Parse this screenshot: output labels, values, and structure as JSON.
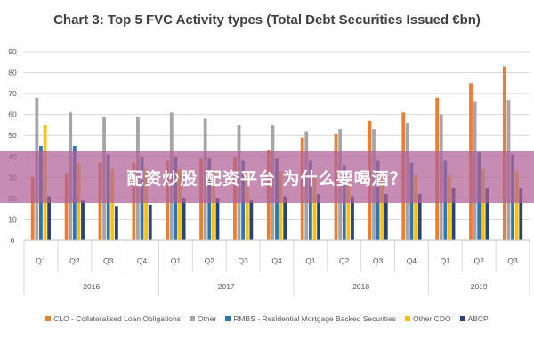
{
  "overlay": {
    "text": "配资炒股 配资平台 为什么要喝酒？"
  },
  "chart_data": {
    "type": "bar",
    "title": "Chart 3: Top 5 FVC Activity types (Total Debt Securities Issued €bn)",
    "xlabel": "",
    "ylabel": "",
    "ylim": [
      0,
      90
    ],
    "yticks": [
      0,
      10,
      20,
      30,
      40,
      50,
      60,
      70,
      80,
      90
    ],
    "grid": true,
    "legend_position": "bottom",
    "categories": [
      "Q1",
      "Q2",
      "Q3",
      "Q4",
      "Q1",
      "Q2",
      "Q3",
      "Q4",
      "Q1",
      "Q2",
      "Q3",
      "Q4",
      "Q1",
      "Q2",
      "Q3"
    ],
    "year_groups": [
      {
        "label": "2016",
        "count": 4
      },
      {
        "label": "2017",
        "count": 4
      },
      {
        "label": "2018",
        "count": 4
      },
      {
        "label": "2019",
        "count": 3
      }
    ],
    "series": [
      {
        "name": "CLO - Collateralised Loan Obligations",
        "color": "#ED7D31",
        "values": [
          30,
          32,
          37,
          37,
          38,
          39,
          40,
          43,
          49,
          51,
          57,
          61,
          68,
          75,
          83
        ]
      },
      {
        "name": "Other",
        "color": "#A5A5A5",
        "values": [
          68,
          61,
          59,
          59,
          61,
          58,
          55,
          55,
          52,
          53,
          53,
          56,
          60,
          66,
          67
        ]
      },
      {
        "name": "RMBS - Residential Mortgage Backed Securities",
        "color": "#2E75B6",
        "values": [
          45,
          45,
          41,
          40,
          40,
          39,
          38,
          39,
          38,
          36,
          38,
          37,
          38,
          42,
          41
        ]
      },
      {
        "name": "Other CDO",
        "color": "#FFC000",
        "values": [
          55,
          37,
          34,
          34,
          34,
          34,
          33,
          33,
          31,
          31,
          32,
          31,
          31,
          34,
          33
        ]
      },
      {
        "name": "ABCP",
        "color": "#264478",
        "values": [
          21,
          19,
          16,
          17,
          20,
          20,
          19,
          21,
          22,
          21,
          22,
          22,
          25,
          25,
          25
        ]
      }
    ]
  }
}
